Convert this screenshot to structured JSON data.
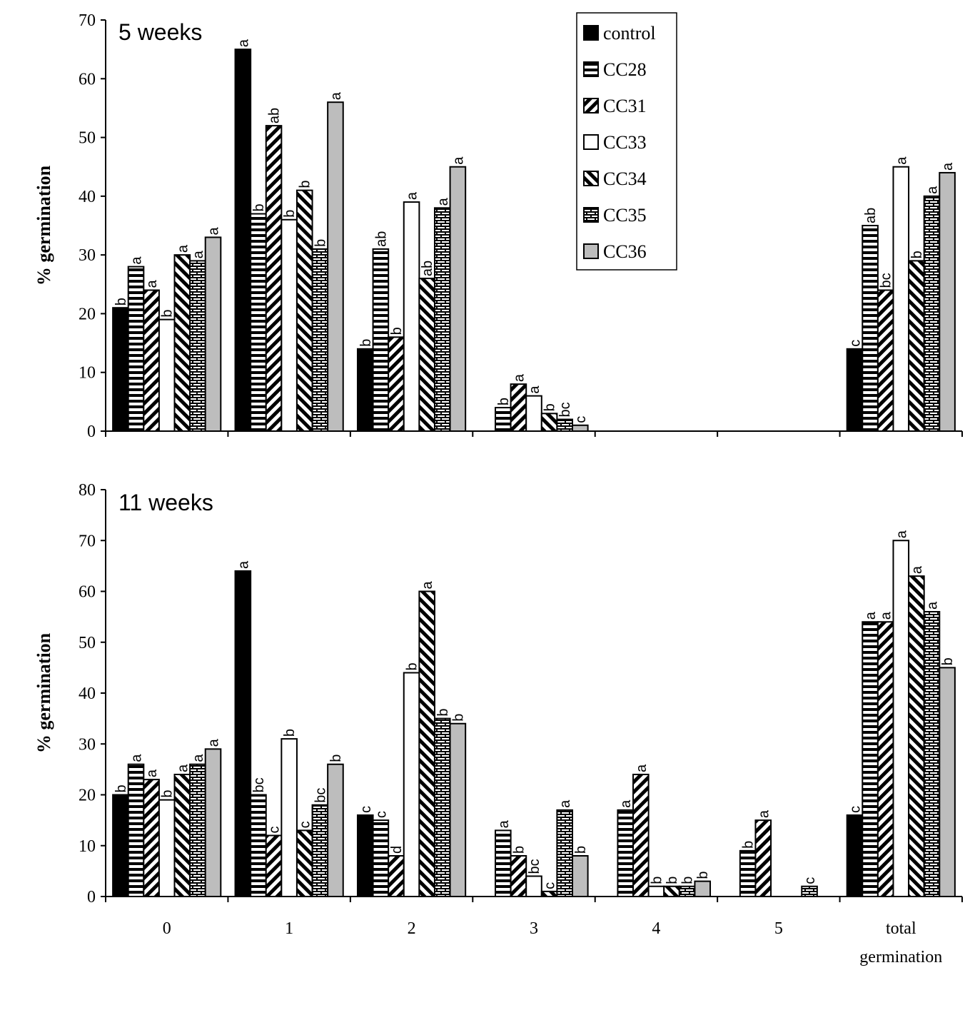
{
  "chart_data": [
    {
      "type": "bar",
      "title": "5 weeks",
      "xlabel": "",
      "ylabel": "% germination",
      "ylim": [
        0,
        70
      ],
      "yticks": [
        "0",
        "10",
        "20",
        "30",
        "40",
        "50",
        "60",
        "70"
      ],
      "categories": [
        "0",
        "1",
        "2",
        "3",
        "4",
        "5",
        "total germination"
      ],
      "series": [
        {
          "name": "control",
          "values": [
            21,
            65,
            14,
            null,
            null,
            null,
            14
          ],
          "labels": [
            "b",
            "a",
            "b",
            "",
            "",
            "",
            "c"
          ]
        },
        {
          "name": "CC28",
          "values": [
            28,
            37,
            31,
            4,
            null,
            null,
            35
          ],
          "labels": [
            "a",
            "b",
            "ab",
            "b",
            "",
            "",
            "ab"
          ]
        },
        {
          "name": "CC31",
          "values": [
            24,
            52,
            16,
            8,
            null,
            null,
            24
          ],
          "labels": [
            "a",
            "ab",
            "b",
            "a",
            "",
            "",
            "bc"
          ]
        },
        {
          "name": "CC33",
          "values": [
            19,
            36,
            39,
            6,
            null,
            null,
            45
          ],
          "labels": [
            "b",
            "b",
            "a",
            "a",
            "",
            "",
            "a"
          ]
        },
        {
          "name": "CC34",
          "values": [
            30,
            41,
            26,
            3,
            null,
            null,
            29
          ],
          "labels": [
            "a",
            "b",
            "ab",
            "b",
            "",
            "",
            "b"
          ]
        },
        {
          "name": "CC35",
          "values": [
            29,
            31,
            38,
            2,
            null,
            null,
            40
          ],
          "labels": [
            "a",
            "b",
            "a",
            "bc",
            "",
            "",
            "a"
          ]
        },
        {
          "name": "CC36",
          "values": [
            33,
            56,
            45,
            1,
            null,
            null,
            44
          ],
          "labels": [
            "a",
            "a",
            "a",
            "c",
            "",
            "",
            "a"
          ]
        }
      ]
    },
    {
      "type": "bar",
      "title": "11 weeks",
      "xlabel": "",
      "ylabel": "% germination",
      "ylim": [
        0,
        80
      ],
      "yticks": [
        "0",
        "10",
        "20",
        "30",
        "40",
        "50",
        "60",
        "70",
        "80"
      ],
      "categories": [
        "0",
        "1",
        "2",
        "3",
        "4",
        "5",
        "total germination"
      ],
      "category_tick_labels": [
        "0",
        "1",
        "2",
        "3",
        "4",
        "5",
        "total",
        "germination"
      ],
      "series": [
        {
          "name": "control",
          "values": [
            20,
            64,
            16,
            null,
            null,
            null,
            16
          ],
          "labels": [
            "b",
            "a",
            "c",
            "",
            "",
            "",
            "c"
          ]
        },
        {
          "name": "CC28",
          "values": [
            26,
            20,
            15,
            13,
            17,
            9,
            54
          ],
          "labels": [
            "a",
            "bc",
            "c",
            "a",
            "a",
            "b",
            "a"
          ]
        },
        {
          "name": "CC31",
          "values": [
            23,
            12,
            8,
            8,
            24,
            15,
            54
          ],
          "labels": [
            "a",
            "c",
            "d",
            "b",
            "a",
            "a",
            "a"
          ]
        },
        {
          "name": "CC33",
          "values": [
            19,
            31,
            44,
            4,
            2,
            null,
            70
          ],
          "labels": [
            "b",
            "b",
            "b",
            "bc",
            "b",
            "",
            "a"
          ]
        },
        {
          "name": "CC34",
          "values": [
            24,
            13,
            60,
            1,
            2,
            null,
            63
          ],
          "labels": [
            "a",
            "c",
            "a",
            "c",
            "b",
            "",
            "a"
          ]
        },
        {
          "name": "CC35",
          "values": [
            26,
            18,
            35,
            17,
            2,
            2,
            56
          ],
          "labels": [
            "a",
            "bc",
            "b",
            "a",
            "b",
            "c",
            "a"
          ]
        },
        {
          "name": "CC36",
          "values": [
            29,
            26,
            34,
            8,
            3,
            null,
            45
          ],
          "labels": [
            "a",
            "b",
            "b",
            "b",
            "b",
            "",
            "b"
          ]
        }
      ]
    }
  ],
  "legend": {
    "position": "top-center",
    "entries": [
      "control",
      "CC28",
      "CC31",
      "CC33",
      "CC34",
      "CC35",
      "CC36"
    ]
  }
}
